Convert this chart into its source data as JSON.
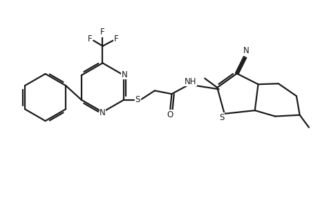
{
  "bg_color": "#ffffff",
  "line_color": "#1a1a1a",
  "line_width": 1.6,
  "figsize": [
    4.77,
    2.87
  ],
  "dpi": 100,
  "xlim": [
    0,
    10
  ],
  "ylim": [
    0,
    6
  ]
}
